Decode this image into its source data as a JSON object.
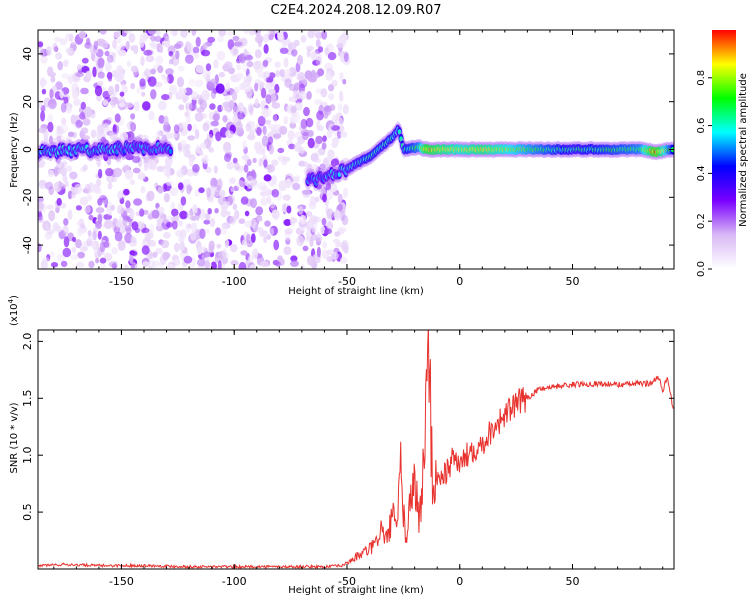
{
  "figure": {
    "title": "C2E4.2024.208.12.09.R07"
  },
  "chart_data": [
    {
      "type": "heatmap",
      "xlabel": "Height of straight line (km)",
      "ylabel": "Frequency (Hz)",
      "xlim": [
        -187,
        95
      ],
      "ylim": [
        -50,
        50
      ],
      "xticks": [
        -150,
        -100,
        -50,
        0,
        50
      ],
      "yticks": [
        -40,
        -20,
        0,
        20,
        40
      ],
      "xtick_labels": [
        "-150",
        "-100",
        "-50",
        "0",
        "50"
      ],
      "ytick_labels": [
        "-40",
        "-20",
        "0",
        "20",
        "40"
      ],
      "colorbar": {
        "label": "Normalized spectral amplitude",
        "range": [
          0,
          1
        ],
        "ticks": [
          0.0,
          0.2,
          0.4,
          0.6,
          0.8
        ],
        "tick_labels": [
          "0.0",
          "0.2",
          "0.4",
          "0.6",
          "0.8"
        ],
        "colors": [
          "#ffffff",
          "#d9b8f5",
          "#7a00ff",
          "#0000ff",
          "#00ffff",
          "#00ff00",
          "#ffff00",
          "#ff0000"
        ]
      },
      "noise_region": {
        "x_range": [
          -187,
          -50
        ],
        "freq_range": [
          -50,
          50
        ],
        "amplitude_range": [
          0.05,
          0.3
        ]
      },
      "ridge": [
        {
          "x": -187,
          "freq": -1,
          "amp": 0.55
        },
        {
          "x": -160,
          "freq": 0,
          "amp": 0.55
        },
        {
          "x": -130,
          "freq": 1,
          "amp": 0.5
        },
        {
          "x": -65,
          "freq": -13,
          "amp": 0.5
        },
        {
          "x": -50,
          "freq": -8,
          "amp": 0.55
        },
        {
          "x": -40,
          "freq": -3,
          "amp": 0.6
        },
        {
          "x": -30,
          "freq": 5,
          "amp": 0.6
        },
        {
          "x": -27,
          "freq": 9,
          "amp": 0.55
        },
        {
          "x": -25,
          "freq": 0,
          "amp": 0.6
        },
        {
          "x": -18,
          "freq": 1,
          "amp": 0.7
        },
        {
          "x": -15,
          "freq": 0,
          "amp": 0.9
        },
        {
          "x": 0,
          "freq": 0,
          "amp": 0.8
        },
        {
          "x": 10,
          "freq": 0,
          "amp": 0.85
        },
        {
          "x": 50,
          "freq": 0,
          "amp": 0.6
        },
        {
          "x": 80,
          "freq": 0,
          "amp": 0.7
        },
        {
          "x": 87,
          "freq": -1,
          "amp": 0.95
        },
        {
          "x": 95,
          "freq": 0,
          "amp": 0.6
        }
      ]
    },
    {
      "type": "line",
      "xlabel": "Height of straight line (km)",
      "ylabel": "SNR (10 * v/v)",
      "multiplier": "(x10",
      "multiplier_exp": "4",
      "multiplier_close": ")",
      "xlim": [
        -187,
        95
      ],
      "ylim": [
        0,
        2.1
      ],
      "xticks": [
        -150,
        -100,
        -50,
        0,
        50
      ],
      "xtick_labels": [
        "-150",
        "-100",
        "-50",
        "0",
        "50"
      ],
      "yticks": [
        0.5,
        1.0,
        1.5,
        2.0
      ],
      "ytick_labels": [
        "0.5",
        "1.0",
        "1.5",
        "2.0"
      ],
      "color": "#e8322e",
      "series": [
        {
          "x": [
            -187,
            -175,
            -160,
            -140,
            -120,
            -100,
            -80,
            -60,
            -52,
            -48,
            -42,
            -38,
            -35,
            -32,
            -30,
            -28,
            -26,
            -24,
            -22,
            -20,
            -18,
            -16,
            -14,
            -12,
            -10,
            -6,
            -2,
            0,
            5,
            10,
            15,
            20,
            25,
            30,
            35,
            40,
            50,
            60,
            70,
            80,
            85,
            88,
            90,
            92,
            95
          ],
          "y": [
            0.03,
            0.04,
            0.03,
            0.03,
            0.02,
            0.02,
            0.02,
            0.02,
            0.03,
            0.08,
            0.15,
            0.2,
            0.35,
            0.25,
            0.5,
            0.3,
            0.9,
            0.2,
            0.6,
            0.8,
            0.4,
            0.9,
            2.05,
            0.7,
            0.8,
            0.85,
            1.0,
            0.9,
            1.05,
            1.1,
            1.25,
            1.35,
            1.45,
            1.5,
            1.58,
            1.6,
            1.62,
            1.63,
            1.62,
            1.63,
            1.63,
            1.7,
            1.55,
            1.7,
            1.35
          ]
        }
      ]
    }
  ]
}
